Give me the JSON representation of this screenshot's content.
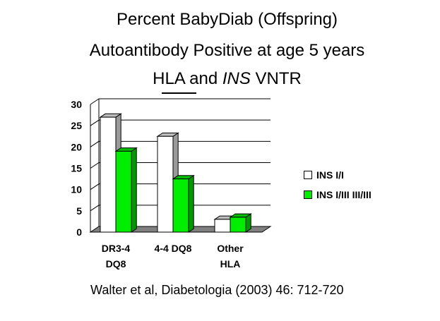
{
  "title": {
    "line1": "Percent BabyDiab (Offspring)",
    "line2": "Autoantibody Positive at age 5 years",
    "line3_prefix": "HLA and ",
    "line3_italic": "INS",
    "line3_suffix": " VNTR"
  },
  "citation": "Walter et al, Diabetologia (2003) 46: 712-720",
  "colors": {
    "series0": "#ffffff",
    "series1": "#00ee00",
    "edge": "#000000"
  },
  "chart_data": {
    "type": "bar",
    "categories": [
      [
        "DR3-4",
        "DQ8"
      ],
      [
        "4-4 DQ8"
      ],
      [
        "Other",
        "HLA"
      ]
    ],
    "series": [
      {
        "name": "INS I/I",
        "values": [
          27,
          22.5,
          3
        ]
      },
      {
        "name": "INS I/III III/III",
        "values": [
          19,
          12.5,
          3.5
        ]
      }
    ],
    "ylim": [
      0,
      30
    ],
    "yticks": [
      "0",
      "5",
      "10",
      "15",
      "20",
      "25",
      "30"
    ],
    "grid": true,
    "legend": "right"
  }
}
